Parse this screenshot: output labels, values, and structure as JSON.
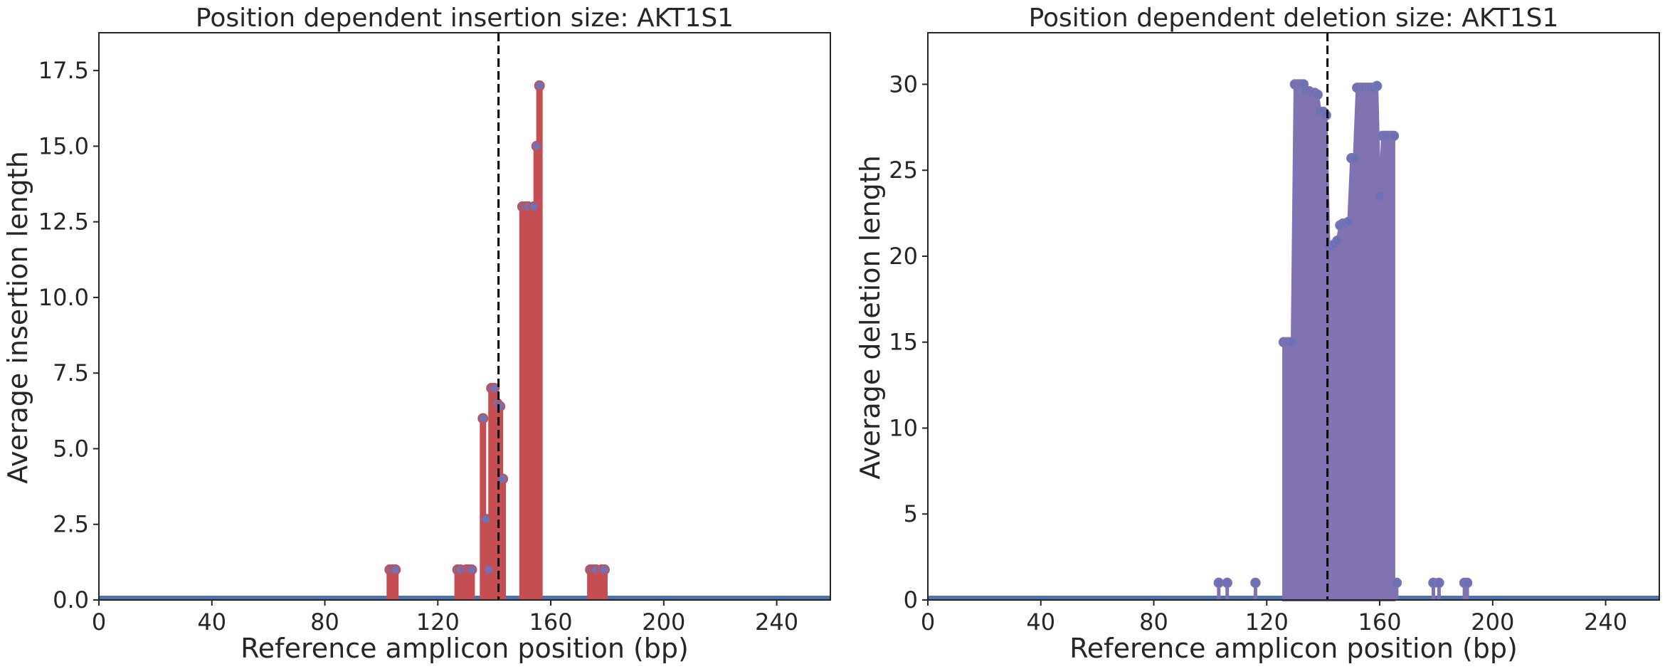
{
  "chart_data": [
    {
      "type": "bar",
      "title": "Position dependent insertion size: AKT1S1",
      "xlabel": "Reference amplicon position (bp)",
      "ylabel": "Average insertion length",
      "xlim": [
        0,
        259
      ],
      "ylim": [
        0,
        18.75
      ],
      "xticks": [
        "0",
        "40",
        "80",
        "120",
        "160",
        "200",
        "240"
      ],
      "yticks": [
        "0.0",
        "2.5",
        "5.0",
        "7.5",
        "10.0",
        "12.5",
        "15.0",
        "17.5"
      ],
      "cut_site": 141.5,
      "grid": false,
      "colors": {
        "bar": "#c44e52",
        "marker": "#7171b3",
        "baseline": "#4c72b0"
      },
      "x": [
        103,
        104,
        105,
        127,
        128,
        130,
        131,
        132,
        136,
        137,
        138,
        139,
        140,
        141,
        142,
        143,
        150,
        151,
        152,
        154,
        155,
        156,
        174,
        175,
        176,
        178,
        179
      ],
      "values": [
        1,
        1,
        1,
        1,
        1,
        1,
        1,
        1,
        6,
        2.67,
        1,
        7,
        7,
        6.5,
        6.4,
        4,
        13,
        13,
        13,
        13,
        15,
        17,
        1,
        1,
        1,
        1,
        1
      ]
    },
    {
      "type": "area",
      "title": "Position dependent deletion size: AKT1S1",
      "xlabel": "Reference amplicon position (bp)",
      "ylabel": "Average deletion length",
      "xlim": [
        0,
        259
      ],
      "ylim": [
        0,
        33
      ],
      "xticks": [
        "0",
        "40",
        "80",
        "120",
        "160",
        "200",
        "240"
      ],
      "yticks": [
        "0",
        "5",
        "10",
        "15",
        "20",
        "25",
        "30"
      ],
      "cut_site": 141.5,
      "grid": false,
      "colors": {
        "fill": "#8172b2",
        "marker": "#6a72b5",
        "baseline": "#4c72b0"
      },
      "x": [
        103,
        106,
        116,
        126,
        127,
        128,
        129,
        130,
        131,
        132,
        133,
        134,
        135,
        136,
        137,
        138,
        139,
        140,
        141,
        142,
        143,
        144,
        145,
        146,
        147,
        148,
        149,
        150,
        151,
        152,
        153,
        154,
        155,
        156,
        157,
        158,
        159,
        160,
        161,
        162,
        163,
        164,
        165,
        166,
        179,
        181,
        190,
        191
      ],
      "values": [
        1,
        1,
        1,
        15,
        15,
        15,
        15,
        30,
        30,
        30,
        30,
        29.6,
        29.6,
        29.5,
        29.5,
        29.4,
        28.4,
        28.4,
        28.2,
        20.6,
        20.6,
        20.7,
        20.9,
        21.8,
        21.9,
        21.9,
        22,
        25.7,
        25.7,
        29.8,
        29.8,
        29.8,
        29.8,
        29.8,
        29.8,
        29.8,
        29.9,
        23.5,
        27,
        27,
        27,
        27,
        27,
        1,
        1,
        1,
        1,
        1
      ]
    }
  ]
}
